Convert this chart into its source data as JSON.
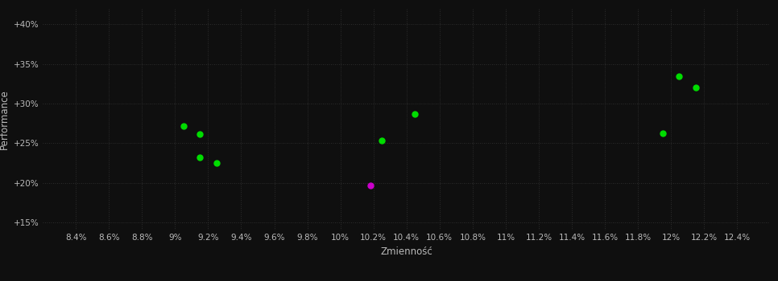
{
  "background_color": "#0f0f0f",
  "plot_bg_color": "#0f0f0f",
  "grid_color": "#3a3a3a",
  "xlabel": "Zmienność",
  "ylabel": "Performance",
  "xlim": [
    0.082,
    0.126
  ],
  "ylim": [
    0.14,
    0.42
  ],
  "xtick_values": [
    0.084,
    0.086,
    0.088,
    0.09,
    0.092,
    0.094,
    0.096,
    0.098,
    0.1,
    0.102,
    0.104,
    0.106,
    0.108,
    0.11,
    0.112,
    0.114,
    0.116,
    0.118,
    0.12,
    0.122,
    0.124
  ],
  "xtick_labels": [
    "8.4%",
    "8.6%",
    "8.8%",
    "9%",
    "9.2%",
    "9.4%",
    "9.6%",
    "9.8%",
    "10%",
    "10.2%",
    "10.4%",
    "10.6%",
    "10.8%",
    "11%",
    "11.2%",
    "11.4%",
    "11.6%",
    "11.8%",
    "12%",
    "12.2%",
    "12.4%"
  ],
  "ytick_values": [
    0.15,
    0.2,
    0.25,
    0.3,
    0.35,
    0.4
  ],
  "ytick_labels": [
    "+15%",
    "+20%",
    "+25%",
    "+30%",
    "+35%",
    "+40%"
  ],
  "green_points": [
    [
      0.0905,
      0.272
    ],
    [
      0.0915,
      0.262
    ],
    [
      0.0915,
      0.232
    ],
    [
      0.0925,
      0.225
    ],
    [
      0.1025,
      0.253
    ],
    [
      0.1045,
      0.287
    ],
    [
      0.1195,
      0.263
    ],
    [
      0.1205,
      0.334
    ],
    [
      0.1215,
      0.32
    ]
  ],
  "magenta_points": [
    [
      0.1018,
      0.197
    ]
  ],
  "point_size": 25,
  "green_color": "#00dd00",
  "magenta_color": "#cc00cc",
  "tick_label_color": "#bbbbbb",
  "axis_label_color": "#bbbbbb",
  "font_size_ticks": 7.5,
  "font_size_labels": 8.5
}
